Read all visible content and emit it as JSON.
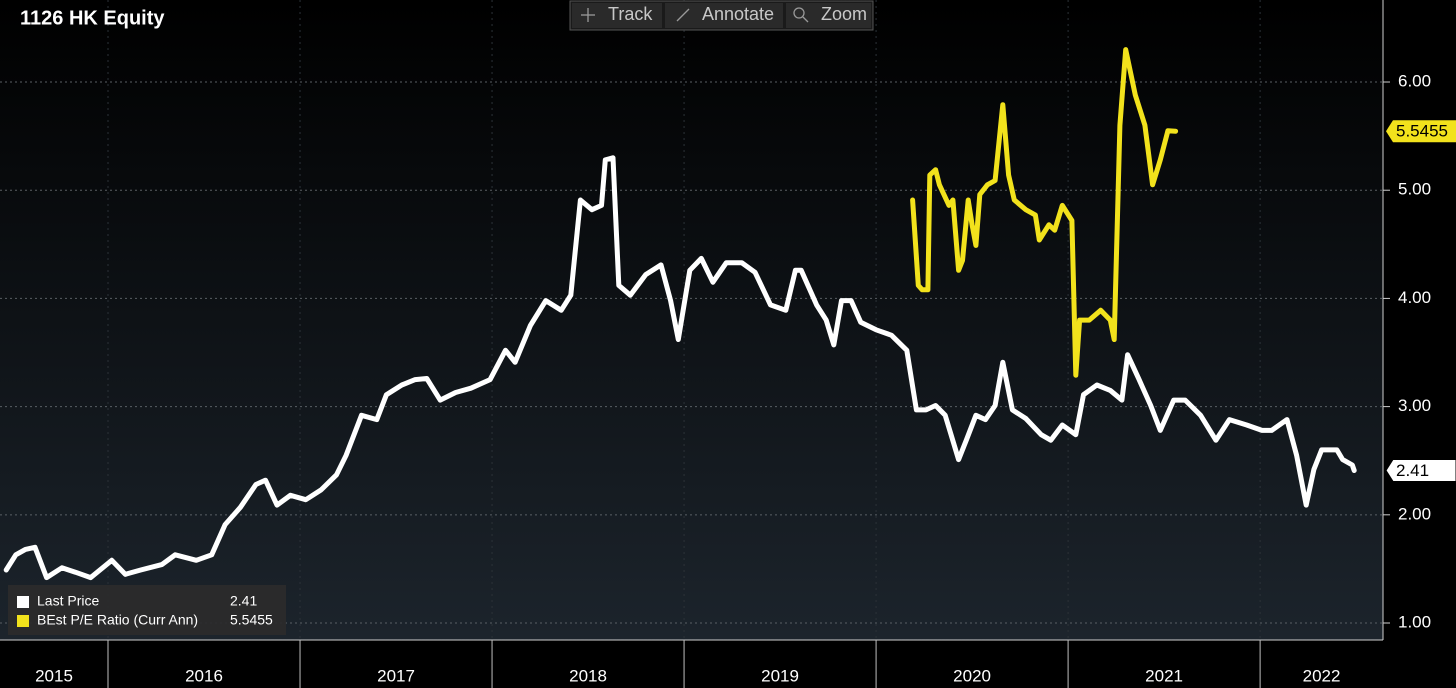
{
  "chart_data": {
    "type": "line",
    "title": "1126 HK Equity",
    "toolbar": [
      "Track",
      "Annotate",
      "Zoom"
    ],
    "xlim": [
      2015.4375,
      2022.64
    ],
    "xticks": [
      2015,
      2016,
      2017,
      2018,
      2019,
      2020,
      2021,
      2022
    ],
    "ylim": [
      0.843,
      6.758
    ],
    "yticks": [
      {
        "value": 1,
        "label": "1.00"
      },
      {
        "value": 2,
        "label": "2.00"
      },
      {
        "value": 3,
        "label": "3.00"
      },
      {
        "value": 4,
        "label": "4.00"
      },
      {
        "value": 5,
        "label": "5.00"
      },
      {
        "value": 6,
        "label": "6.00"
      }
    ],
    "grid": true,
    "legend": "lower left",
    "series": [
      {
        "name": "Last Price",
        "color": "#ffffff",
        "x": [
          2015.47,
          2015.52,
          2015.57,
          2015.62,
          2015.68,
          2015.76,
          2015.83,
          2015.91,
          2016.02,
          2016.09,
          2016.17,
          2016.28,
          2016.35,
          2016.46,
          2016.54,
          2016.61,
          2016.69,
          2016.77,
          2016.82,
          2016.88,
          2016.95,
          2017.03,
          2017.11,
          2017.19,
          2017.24,
          2017.32,
          2017.4,
          2017.45,
          2017.53,
          2017.6,
          2017.66,
          2017.73,
          2017.81,
          2017.89,
          2017.99,
          2018.07,
          2018.12,
          2018.2,
          2018.28,
          2018.36,
          2018.41,
          2018.46,
          2018.52,
          2018.57,
          2018.59,
          2018.63,
          2018.66,
          2018.72,
          2018.8,
          2018.88,
          2018.93,
          2018.97,
          2019.03,
          2019.09,
          2019.15,
          2019.22,
          2019.3,
          2019.37,
          2019.45,
          2019.53,
          2019.58,
          2019.61,
          2019.69,
          2019.74,
          2019.78,
          2019.82,
          2019.87,
          2019.92,
          2020.0,
          2020.08,
          2020.16,
          2020.21,
          2020.26,
          2020.31,
          2020.36,
          2020.43,
          2020.47,
          2020.52,
          2020.57,
          2020.62,
          2020.66,
          2020.71,
          2020.78,
          2020.86,
          2020.91,
          2020.97,
          2021.04,
          2021.08,
          2021.15,
          2021.22,
          2021.28,
          2021.31,
          2021.37,
          2021.43,
          2021.48,
          2021.55,
          2021.61,
          2021.69,
          2021.77,
          2021.84,
          2021.93,
          2022.01,
          2022.06,
          2022.14,
          2022.19,
          2022.24,
          2022.28,
          2022.32,
          2022.4,
          2022.43,
          2022.48,
          2022.49
        ],
        "values": [
          1.49,
          1.63,
          1.68,
          1.7,
          1.42,
          1.51,
          1.47,
          1.42,
          1.58,
          1.45,
          1.49,
          1.54,
          1.63,
          1.58,
          1.63,
          1.91,
          2.07,
          2.28,
          2.32,
          2.09,
          2.18,
          2.14,
          2.23,
          2.37,
          2.55,
          2.92,
          2.88,
          3.11,
          3.2,
          3.25,
          3.26,
          3.06,
          3.13,
          3.17,
          3.25,
          3.52,
          3.41,
          3.75,
          3.98,
          3.89,
          4.03,
          4.91,
          4.82,
          4.86,
          5.28,
          5.3,
          4.12,
          4.03,
          4.22,
          4.31,
          3.98,
          3.62,
          4.26,
          4.37,
          4.15,
          4.33,
          4.33,
          4.24,
          3.94,
          3.89,
          4.26,
          4.26,
          3.94,
          3.8,
          3.57,
          3.98,
          3.98,
          3.78,
          3.71,
          3.66,
          3.52,
          2.97,
          2.97,
          3.01,
          2.92,
          2.51,
          2.69,
          2.92,
          2.88,
          3.01,
          3.41,
          2.97,
          2.89,
          2.74,
          2.69,
          2.83,
          2.74,
          3.11,
          3.2,
          3.15,
          3.06,
          3.48,
          3.25,
          3.01,
          2.78,
          3.06,
          3.06,
          2.92,
          2.69,
          2.88,
          2.83,
          2.78,
          2.78,
          2.88,
          2.55,
          2.09,
          2.42,
          2.6,
          2.6,
          2.51,
          2.46,
          2.41
        ]
      },
      {
        "name": "BEst P/E Ratio (Curr Ann)",
        "color": "#f2e21c",
        "x": [
          2020.19,
          2020.22,
          2020.24,
          2020.27,
          2020.28,
          2020.31,
          2020.33,
          2020.38,
          2020.4,
          2020.43,
          2020.45,
          2020.48,
          2020.5,
          2020.52,
          2020.54,
          2020.58,
          2020.62,
          2020.66,
          2020.69,
          2020.72,
          2020.78,
          2020.83,
          2020.85,
          2020.9,
          2020.93,
          2020.97,
          2021.02,
          2021.04,
          2021.06,
          2021.11,
          2021.17,
          2021.22,
          2021.24,
          2021.27,
          2021.3,
          2021.35,
          2021.4,
          2021.44,
          2021.48,
          2021.52,
          2021.56
        ],
        "values": [
          4.91,
          4.12,
          4.08,
          4.08,
          5.14,
          5.19,
          5.05,
          4.86,
          4.91,
          4.26,
          4.35,
          4.91,
          4.68,
          4.49,
          4.96,
          5.05,
          5.09,
          5.79,
          5.14,
          4.91,
          4.82,
          4.77,
          4.54,
          4.68,
          4.63,
          4.86,
          4.72,
          3.29,
          3.8,
          3.8,
          3.89,
          3.8,
          3.62,
          5.6,
          6.3,
          5.88,
          5.6,
          5.05,
          5.28,
          5.55,
          5.5455
        ]
      }
    ]
  }
}
